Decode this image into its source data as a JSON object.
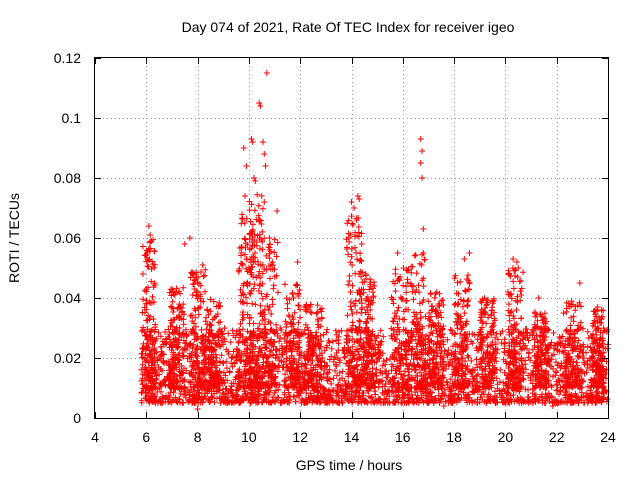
{
  "chart_data": {
    "type": "scatter",
    "title": "Day 074 of 2021, Rate Of TEC Index for receiver igeo",
    "xlabel": "GPS time / hours",
    "ylabel": "ROTI / TECUs",
    "xlim": [
      4,
      24
    ],
    "ylim": [
      0,
      0.12
    ],
    "x_ticks": [
      4,
      6,
      8,
      10,
      12,
      14,
      16,
      18,
      20,
      22,
      24
    ],
    "y_ticks": [
      0,
      0.02,
      0.04,
      0.06,
      0.08,
      0.1,
      0.12
    ],
    "x_tick_labels": [
      "4",
      "6",
      "8",
      "10",
      "12",
      "14",
      "16",
      "18",
      "20",
      "22",
      "24"
    ],
    "y_tick_labels": [
      "0",
      "0.02",
      "0.04",
      "0.06",
      "0.08",
      "0.1",
      "0.12"
    ],
    "grid": true,
    "marker": "plus",
    "color": "#ff0000",
    "data_range": {
      "x_start": 5.8,
      "x_end": 24,
      "baseline_y": [
        0.005,
        0.03
      ]
    },
    "notable_points": [
      {
        "x": 6.1,
        "y": 0.064
      },
      {
        "x": 6.15,
        "y": 0.061
      },
      {
        "x": 6.2,
        "y": 0.059
      },
      {
        "x": 7.5,
        "y": 0.058
      },
      {
        "x": 7.7,
        "y": 0.06
      },
      {
        "x": 8.2,
        "y": 0.051
      },
      {
        "x": 9.8,
        "y": 0.09
      },
      {
        "x": 9.9,
        "y": 0.084
      },
      {
        "x": 9.85,
        "y": 0.074
      },
      {
        "x": 10.1,
        "y": 0.093
      },
      {
        "x": 10.15,
        "y": 0.092
      },
      {
        "x": 10.2,
        "y": 0.08
      },
      {
        "x": 10.25,
        "y": 0.079
      },
      {
        "x": 10.4,
        "y": 0.105
      },
      {
        "x": 10.45,
        "y": 0.104
      },
      {
        "x": 10.55,
        "y": 0.092
      },
      {
        "x": 10.6,
        "y": 0.088
      },
      {
        "x": 10.7,
        "y": 0.115
      },
      {
        "x": 10.65,
        "y": 0.084
      },
      {
        "x": 10.5,
        "y": 0.074
      },
      {
        "x": 10.6,
        "y": 0.072
      },
      {
        "x": 11.1,
        "y": 0.069
      },
      {
        "x": 10.8,
        "y": 0.06
      },
      {
        "x": 11.9,
        "y": 0.052
      },
      {
        "x": 14.0,
        "y": 0.072
      },
      {
        "x": 14.1,
        "y": 0.07
      },
      {
        "x": 14.25,
        "y": 0.074
      },
      {
        "x": 14.3,
        "y": 0.073
      },
      {
        "x": 14.2,
        "y": 0.066
      },
      {
        "x": 13.9,
        "y": 0.06
      },
      {
        "x": 14.4,
        "y": 0.058
      },
      {
        "x": 16.7,
        "y": 0.093
      },
      {
        "x": 16.75,
        "y": 0.089
      },
      {
        "x": 16.7,
        "y": 0.085
      },
      {
        "x": 16.75,
        "y": 0.08
      },
      {
        "x": 16.8,
        "y": 0.063
      },
      {
        "x": 16.8,
        "y": 0.055
      },
      {
        "x": 15.8,
        "y": 0.055
      },
      {
        "x": 18.4,
        "y": 0.053
      },
      {
        "x": 18.6,
        "y": 0.055
      },
      {
        "x": 20.3,
        "y": 0.053
      },
      {
        "x": 20.45,
        "y": 0.052
      },
      {
        "x": 20.5,
        "y": 0.05
      },
      {
        "x": 20.1,
        "y": 0.042
      },
      {
        "x": 21.3,
        "y": 0.04
      },
      {
        "x": 22.9,
        "y": 0.045
      },
      {
        "x": 23.6,
        "y": 0.037
      },
      {
        "x": 23.75,
        "y": 0.036
      },
      {
        "x": 8.0,
        "y": 0.003
      },
      {
        "x": 21.85,
        "y": 0.004
      },
      {
        "x": 17.6,
        "y": 0.004
      }
    ],
    "activity_bands": [
      {
        "x": 6.1,
        "width": 0.25,
        "max": 0.06
      },
      {
        "x": 7.2,
        "width": 0.3,
        "max": 0.045
      },
      {
        "x": 8.0,
        "width": 0.3,
        "max": 0.05
      },
      {
        "x": 8.6,
        "width": 0.3,
        "max": 0.04
      },
      {
        "x": 9.9,
        "width": 0.3,
        "max": 0.07
      },
      {
        "x": 10.3,
        "width": 0.3,
        "max": 0.075
      },
      {
        "x": 10.8,
        "width": 0.35,
        "max": 0.06
      },
      {
        "x": 11.7,
        "width": 0.3,
        "max": 0.045
      },
      {
        "x": 12.5,
        "width": 0.35,
        "max": 0.038
      },
      {
        "x": 14.1,
        "width": 0.3,
        "max": 0.068
      },
      {
        "x": 14.6,
        "width": 0.3,
        "max": 0.05
      },
      {
        "x": 15.9,
        "width": 0.35,
        "max": 0.05
      },
      {
        "x": 16.6,
        "width": 0.3,
        "max": 0.055
      },
      {
        "x": 17.3,
        "width": 0.3,
        "max": 0.042
      },
      {
        "x": 18.3,
        "width": 0.3,
        "max": 0.048
      },
      {
        "x": 19.3,
        "width": 0.3,
        "max": 0.04
      },
      {
        "x": 20.4,
        "width": 0.3,
        "max": 0.05
      },
      {
        "x": 21.4,
        "width": 0.3,
        "max": 0.036
      },
      {
        "x": 22.6,
        "width": 0.35,
        "max": 0.04
      },
      {
        "x": 23.6,
        "width": 0.25,
        "max": 0.036
      }
    ]
  }
}
